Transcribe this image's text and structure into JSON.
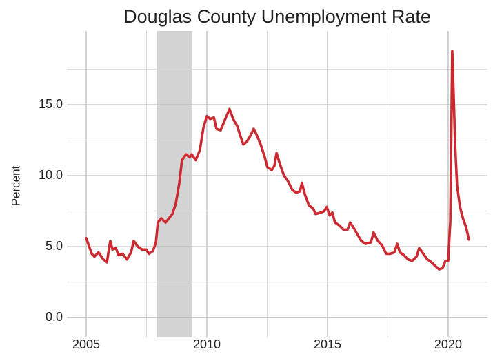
{
  "chart_data": {
    "type": "line",
    "title": "Douglas County Unemployment Rate",
    "y_label": "Percent",
    "x": [
      2005.0,
      2005.23,
      2005.34,
      2005.51,
      2005.71,
      2005.86,
      2005.94,
      2006.0,
      2006.09,
      2006.23,
      2006.34,
      2006.51,
      2006.69,
      2006.86,
      2006.97,
      2007.14,
      2007.31,
      2007.49,
      2007.6,
      2007.77,
      2007.89,
      2007.97,
      2008.11,
      2008.29,
      2008.43,
      2008.57,
      2008.71,
      2008.86,
      2008.97,
      2009.14,
      2009.29,
      2009.37,
      2009.54,
      2009.71,
      2009.86,
      2010.0,
      2010.14,
      2010.29,
      2010.4,
      2010.57,
      2010.74,
      2010.94,
      2011.09,
      2011.26,
      2011.37,
      2011.51,
      2011.66,
      2011.83,
      2011.94,
      2012.06,
      2012.23,
      2012.4,
      2012.51,
      2012.69,
      2012.8,
      2012.89,
      2013.03,
      2013.2,
      2013.37,
      2013.54,
      2013.71,
      2013.86,
      2013.94,
      2014.06,
      2014.23,
      2014.4,
      2014.51,
      2014.71,
      2014.86,
      2014.97,
      2015.09,
      2015.2,
      2015.31,
      2015.49,
      2015.66,
      2015.83,
      2015.94,
      2016.06,
      2016.23,
      2016.4,
      2016.57,
      2016.8,
      2016.91,
      2017.09,
      2017.26,
      2017.43,
      2017.6,
      2017.77,
      2017.89,
      2018.0,
      2018.17,
      2018.34,
      2018.51,
      2018.69,
      2018.8,
      2018.97,
      2019.14,
      2019.31,
      2019.49,
      2019.63,
      2019.77,
      2019.89,
      2020.0,
      2020.09,
      2020.17,
      2020.23,
      2020.29,
      2020.37,
      2020.49,
      2020.63,
      2020.74,
      2020.86
    ],
    "series": [
      {
        "name": "Unemployment rate",
        "color": "#cc2a30",
        "values": [
          5.6,
          4.5,
          4.3,
          4.6,
          4.1,
          3.9,
          4.8,
          5.4,
          4.8,
          4.9,
          4.4,
          4.5,
          4.1,
          4.6,
          5.4,
          5.0,
          4.8,
          4.8,
          4.5,
          4.7,
          5.3,
          6.7,
          7.0,
          6.7,
          7.0,
          7.3,
          8.0,
          9.5,
          11.1,
          11.5,
          11.3,
          11.5,
          11.1,
          11.8,
          13.4,
          14.2,
          14.0,
          14.1,
          13.3,
          13.2,
          13.9,
          14.7,
          14.0,
          13.5,
          12.9,
          12.2,
          12.4,
          12.9,
          13.3,
          12.9,
          12.2,
          11.3,
          10.6,
          10.4,
          10.7,
          11.6,
          10.8,
          10.0,
          9.6,
          9.0,
          8.8,
          8.9,
          9.5,
          8.7,
          7.9,
          7.7,
          7.3,
          7.4,
          7.5,
          7.8,
          7.2,
          7.4,
          6.7,
          6.5,
          6.2,
          6.2,
          6.7,
          6.4,
          5.9,
          5.4,
          5.2,
          5.3,
          6.0,
          5.4,
          5.1,
          4.5,
          4.5,
          4.6,
          5.2,
          4.6,
          4.4,
          4.1,
          4.0,
          4.3,
          4.9,
          4.5,
          4.1,
          3.9,
          3.6,
          3.4,
          3.5,
          4.0,
          4.0,
          6.8,
          18.8,
          15.6,
          12.2,
          9.3,
          7.8,
          6.9,
          6.4,
          5.5
        ]
      }
    ],
    "shaded_regions": [
      {
        "start": 2007.92,
        "end": 2009.38,
        "color": "#d3d3d3"
      }
    ],
    "xlim": [
      2004.2,
      2021.63
    ],
    "ylim": [
      -1.4,
      20.2
    ],
    "xticks": [
      2005,
      2010,
      2015,
      2020
    ],
    "yticks": [
      {
        "value": 0,
        "label": "0.0"
      },
      {
        "value": 5,
        "label": "5.0"
      },
      {
        "value": 10,
        "label": "10.0"
      },
      {
        "value": 15,
        "label": "15.0"
      }
    ],
    "minor_xticks": [
      2007.5,
      2012.5,
      2017.5
    ],
    "minor_yticks": [
      2.5,
      7.5,
      12.5,
      17.5
    ],
    "grid": true
  }
}
